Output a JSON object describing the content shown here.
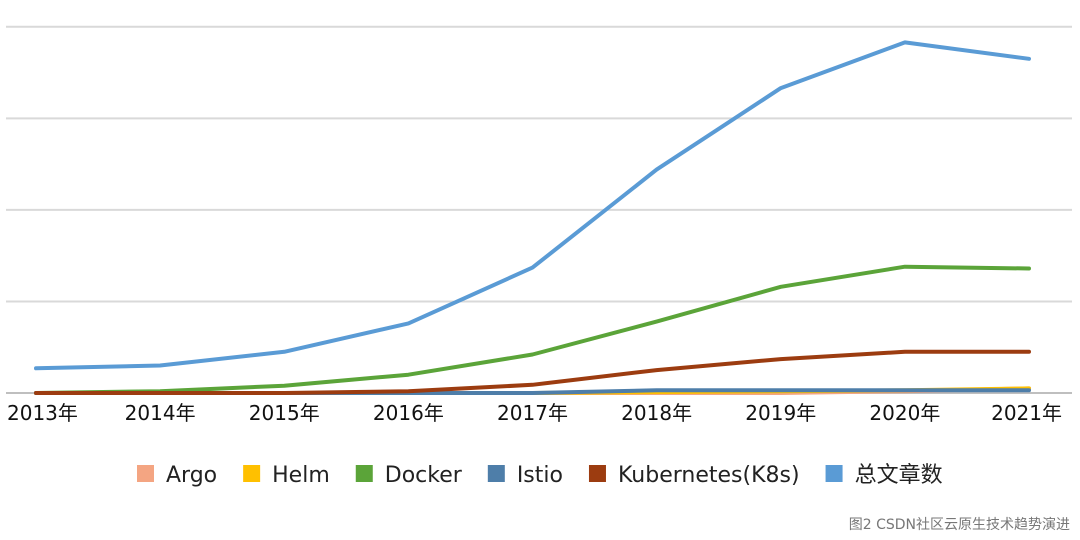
{
  "chart_data": {
    "type": "line",
    "categories": [
      "2013年",
      "2014年",
      "2015年",
      "2016年",
      "2017年",
      "2018年",
      "2019年",
      "2020年",
      "2021年"
    ],
    "ylim": [
      0,
      380
    ],
    "gridlines": [
      0,
      100,
      200,
      300,
      400
    ],
    "grid": true,
    "legend_position": "bottom",
    "series": [
      {
        "name": "Argo",
        "color": "#f4a582",
        "values": [
          0,
          0,
          0,
          0,
          0,
          0,
          0,
          2,
          5
        ]
      },
      {
        "name": "Helm",
        "color": "#ffc000",
        "values": [
          0,
          0,
          0,
          0,
          0,
          1,
          2,
          3,
          5
        ]
      },
      {
        "name": "Docker",
        "color": "#5ba439",
        "values": [
          0,
          2,
          8,
          20,
          42,
          78,
          116,
          138,
          136
        ]
      },
      {
        "name": "Istio",
        "color": "#4e7ea9",
        "values": [
          0,
          0,
          0,
          0,
          0,
          3,
          3,
          3,
          3
        ]
      },
      {
        "name": "Kubernetes(K8s)",
        "color": "#9c3c10",
        "values": [
          0,
          0,
          0,
          2,
          9,
          25,
          37,
          45,
          45
        ]
      },
      {
        "name": "总文章数",
        "color": "#5a9bd5",
        "values": [
          27,
          30,
          45,
          76,
          137,
          244,
          333,
          383,
          365
        ]
      }
    ]
  },
  "caption": "图2  CSDN社区云原生技术趋势演进"
}
